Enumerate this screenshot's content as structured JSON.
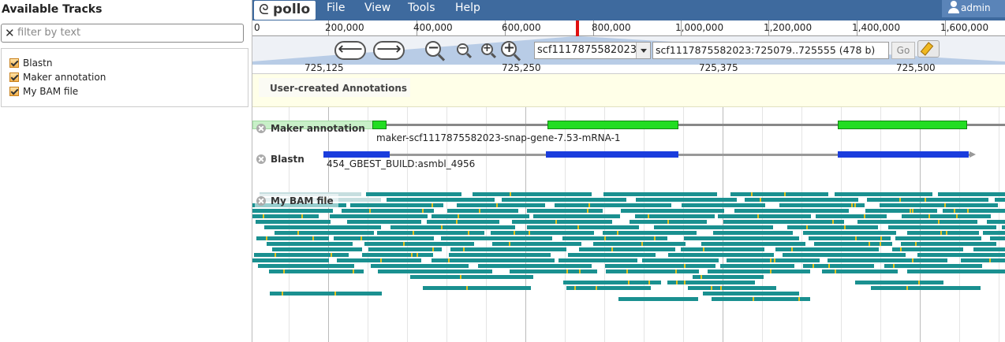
{
  "left_panel": {
    "title": "Available Tracks",
    "filter_placeholder": "filter by text",
    "tracks": [
      "Blastn",
      "Maker annotation",
      "My BAM file"
    ]
  },
  "menubar": {
    "logo": "pollo",
    "menus": [
      "File",
      "View",
      "Tools",
      "Help"
    ],
    "user": "admin"
  },
  "overview": {
    "labels": [
      "0",
      "200,000",
      "400,000",
      "600,000",
      "800,000",
      "1,000,000",
      "1,200,000",
      "1,400,000",
      "1,600,000"
    ]
  },
  "nav": {
    "reference": "scf1117875582023",
    "location": "scf1117875582023:725079..725555 (478 b)",
    "go_label": "Go"
  },
  "ruler": {
    "labels": [
      "725,125",
      "725,250",
      "725,375",
      "725,500"
    ]
  },
  "tracks": {
    "user_created": "User-created Annotations",
    "maker_label": "Maker annotation",
    "maker_feature": "maker-scf1117875582023-snap-gene-7.53-mRNA-1",
    "blastn_label": "Blastn",
    "blastn_feature": "454_GBEST_BUILD:asmbl_4956",
    "bam_label": "My BAM file"
  },
  "colors": {
    "menubar": "#3e6a9e",
    "exon_green": "#22dd22",
    "exon_blue": "#1a3ddd",
    "read": "#1a9090",
    "snp": "#e0c020",
    "locus_marker": "#e01010"
  }
}
